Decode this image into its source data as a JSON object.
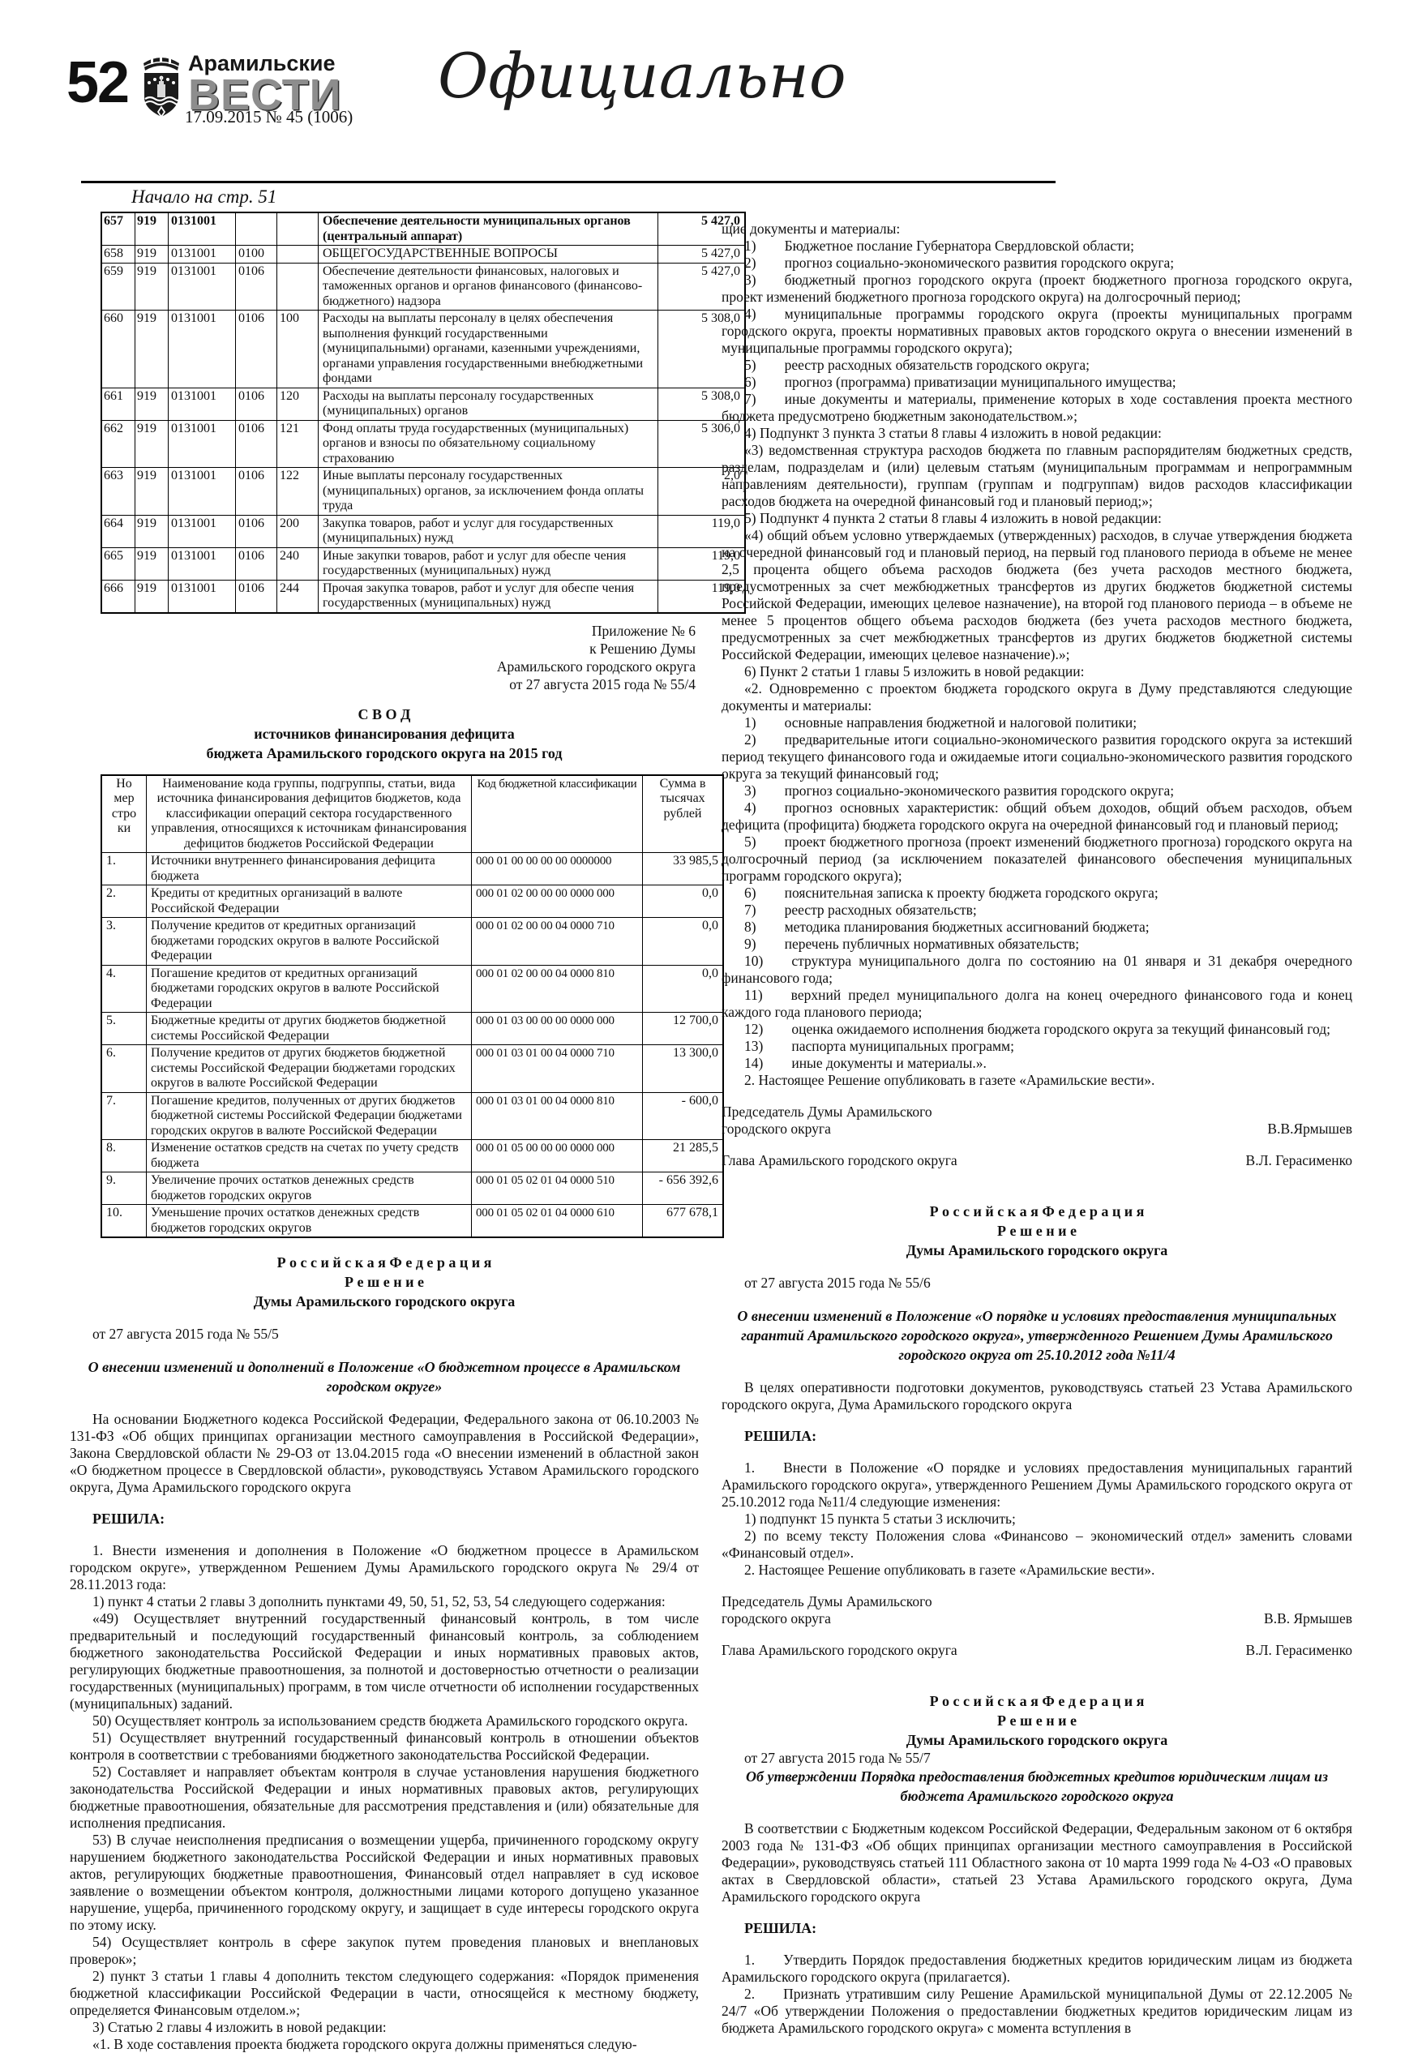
{
  "header": {
    "page_number": "52",
    "brand_top": "Арамильские",
    "brand_main": "ВЕСТИ",
    "issue_line": "17.09.2015  № 45 (1006)",
    "section_label": "Официально",
    "continued_note": "Начало на стр. 51",
    "emblem": "aramil-coat-of-arms"
  },
  "table1": {
    "rows": [
      {
        "bold": true,
        "cells": [
          "657",
          "919",
          "0131001",
          "",
          "",
          "Обеспечение деятельности муниципальных органов (центральный аппарат)",
          "5 427,0"
        ]
      },
      {
        "cells": [
          "658",
          "919",
          "0131001",
          "0100",
          "",
          "ОБЩЕГОСУДАРСТВЕННЫЕ ВОПРОСЫ",
          "5 427,0"
        ]
      },
      {
        "cells": [
          "659",
          "919",
          "0131001",
          "0106",
          "",
          "Обеспечение деятельности финансовых, налоговых и таможенных органов и органов финансового (финансово-бюджетного) надзора",
          "5 427,0"
        ]
      },
      {
        "cells": [
          "660",
          "919",
          "0131001",
          "0106",
          "100",
          "Расходы на выплаты персоналу в целях обеспечения выполнения функций государственными (муниципальными) органами, казенными учреждениями, органами управления государственными внебюджетными фондами",
          "5 308,0"
        ]
      },
      {
        "cells": [
          "661",
          "919",
          "0131001",
          "0106",
          "120",
          "Расходы на выплаты персоналу государственных (муниципальных) органов",
          "5 308,0"
        ]
      },
      {
        "cells": [
          "662",
          "919",
          "0131001",
          "0106",
          "121",
          "Фонд оплаты труда государственных (муниципальных) органов и  взносы по обязательному социальному страхованию",
          "5 306,0"
        ]
      },
      {
        "cells": [
          "663",
          "919",
          "0131001",
          "0106",
          "122",
          "Иные выплаты персоналу  государственных (муниципальных) органов, за исключением фонда оплаты труда",
          "2,0"
        ]
      },
      {
        "cells": [
          "664",
          "919",
          "0131001",
          "0106",
          "200",
          "Закупка товаров, работ и услуг для государственных (муниципальных) нужд",
          "119,0"
        ]
      },
      {
        "cells": [
          "665",
          "919",
          "0131001",
          "0106",
          "240",
          "Иные закупки товаров, работ и услуг для обеспе чения государственных (муниципальных) нужд",
          "119,0"
        ]
      },
      {
        "cells": [
          "666",
          "919",
          "0131001",
          "0106",
          "244",
          "Прочая закупка товаров, работ и услуг для обеспе чения государственных  (муниципальных) нужд",
          "119,0"
        ]
      }
    ]
  },
  "appendix": {
    "lines": [
      "Приложение № 6",
      "к Решению Думы",
      "Арамильского городского округа",
      "от 27 августа 2015 года № 55/4"
    ]
  },
  "svod": {
    "title_lines": [
      "С В О Д",
      "источников финансирования дефицита",
      "бюджета Арамильского городского округа на 2015 год"
    ],
    "header": [
      "Но мер стро ки",
      "Наименование кода группы,  подгруппы, статьи, вида источника  финансирования дефицитов бюджетов, кода классификации операций сектора государственного управления, относящихся к источникам  финансирования дефицитов бюджетов Российской Федерации",
      "Код бюджетной классификации",
      "Сумма в тысячах рублей"
    ],
    "rows": [
      {
        "cells": [
          "1.",
          "Источники внутреннего   финансирования дефицита бюджета",
          "000 01 00 00 00 00 0000000",
          "33 985,5"
        ]
      },
      {
        "cells": [
          "2.",
          "Кредиты от кредитных организаций в валюте Российской  Федерации",
          "000 01 02 00 00 00 0000 000",
          "0,0"
        ]
      },
      {
        "cells": [
          "3.",
          "Получение кредитов от кредитных организаций бюджетами  городских округов в валюте Российской  Федерации",
          "000 01 02 00 00 04 0000 710",
          "0,0"
        ]
      },
      {
        "cells": [
          "4.",
          "Погашение кредитов от кредитных организаций бюджетами  городских округов в валюте Российской  Федерации",
          "000 01 02 00 00 04 0000 810",
          "0,0"
        ]
      },
      {
        "cells": [
          "5.",
          "Бюджетные кредиты от других бюджетов бюджетной системы  Российской Федерации",
          "000 01 03 00 00 00 0000 000",
          "12 700,0"
        ]
      },
      {
        "cells": [
          "6.",
          "Получение кредитов от других бюджетов бюджетной системы  Российской Федерации  бюджетами  городских округов в валюте Российской  Федерации",
          "000 01 03 01 00 04 0000 710",
          "13 300,0"
        ]
      },
      {
        "cells": [
          "7.",
          "Погашение кредитов,  полученных от других бюджетов бюджетной системы  Российской Федерации бюджетами городских округов в валюте  Российской Федерации",
          "000 01 03 01 00 04 0000 810",
          "-  600,0"
        ]
      },
      {
        "cells": [
          "8.",
          "Изменение остатков средств  на счетах по учету средств бюджета",
          "000 01 05 00 00 00 0000 000",
          "21 285,5"
        ]
      },
      {
        "cells": [
          "9.",
          "Увеличение прочих остатков  денежных средств бюджетов городских округов",
          "000 01 05 02 01 04 0000 510",
          "- 656 392,6"
        ]
      },
      {
        "cells": [
          "10.",
          "Уменьшение прочих остатков  денежных средств бюджетов городских округов",
          "000 01 05 02 01 04 0000 610",
          "677 678,1"
        ]
      }
    ]
  },
  "left_doc": {
    "flow": [
      {
        "s": "gap"
      },
      {
        "t": "Р о с с и й с к а я   Ф е д е р а ц и я",
        "s": "hb"
      },
      {
        "t": "Р е ш е н и е",
        "s": "hb"
      },
      {
        "t": "Думы Арамильского городского округа",
        "s": "hb"
      },
      {
        "s": "gap"
      },
      {
        "t": "от 27 августа 2015 года № 55/5",
        "s": "plain"
      },
      {
        "s": "gap"
      },
      {
        "t": "О внесении изменений и дополнений в Положение «О бюджетном процессе в Арамильском городском округе»",
        "s": "cbi"
      },
      {
        "s": "gap"
      },
      {
        "t": "На основании Бюджетного кодекса Российской Федерации,        Федерального закона от 06.10.2003 № 131-ФЗ «Об общих принципах организации местного самоуправления в Российской Федерации», Закона Свердловской области № 29-ОЗ от 13.04.2015 года «О внесении изменений в областной закон «О бюджетном процессе в Свердловской области»,  руководствуясь Уставом Арамильского городского округа, Дума Арамильского городского округа",
        "s": "ind"
      },
      {
        "s": "gap"
      },
      {
        "t": "РЕШИЛА:",
        "s": "bold"
      },
      {
        "s": "gap"
      },
      {
        "t": "1. Внести изменения и дополнения в Положение «О бюджетном процессе в Арамильском городском округе», утвержденном Решением Думы Арамильского городского округа № 29/4 от 28.11.2013 года:",
        "s": "ind"
      },
      {
        "t": "1) пункт 4 статьи 2 главы 3 дополнить пунктами 49, 50, 51, 52, 53, 54 следующего содержания:",
        "s": "ind"
      },
      {
        "t": "«49) Осуществляет внутренний государственный финансовый контроль, в том числе предварительный и последующий государственный финансовый контроль, за соблюдением бюджетного законодательства Российской Федерации и иных нормативных правовых актов, регулирующих бюджетные правоотношения, за полнотой и достоверностью отчетности о реализации государственных (муниципальных) программ, в том числе отчетности об исполнении государственных (муниципальных) заданий.",
        "s": "ind"
      },
      {
        "t": "50) Осуществляет контроль за использованием средств бюджета Арамильского городского округа.",
        "s": "ind"
      },
      {
        "t": "51) Осуществляет внутренний государственный финансовый контроль в отношении объектов контроля в соответствии с требованиями бюджетного законодательства Российской Федерации.",
        "s": "ind"
      },
      {
        "t": "52) Составляет и направляет объектам контроля в случае установления нарушения бюджетного законодательства Российской Федерации и иных нормативных правовых актов, регулирующих бюджетные правоотношения, обязательные для рассмотрения представления и (или) обязательные для исполнения предписания.",
        "s": "ind"
      },
      {
        "t": "53) В случае неисполнения предписания о возмещении ущерба, причиненного городскому округу нарушением бюджетного законодательства Российской Федерации и иных нормативных правовых актов, регулирующих бюджетные правоотношения, Финансовый отдел направляет в суд исковое заявление о возмещении объектом контроля, должностными лицами которого допущено указанное нарушение, ущерба, причиненного городскому округу, и защищает в суде интересы городского округа по этому иску.",
        "s": "ind"
      },
      {
        "t": "54) Осуществляет контроль в сфере закупок путем проведения плановых и внеплановых проверок»;",
        "s": "ind"
      },
      {
        "t": "2) пункт 3 статьи 1 главы 4 дополнить текстом следующего содержания: «Порядок применения бюджетной классификации Российской Федерации в части, относящейся к местному бюджету, определяется Финансовым отделом.»;",
        "s": "ind"
      },
      {
        "t": "3) Статью 2 главы 4 изложить в новой редакции:",
        "s": "ind"
      },
      {
        "t": "«1. В ходе составления проекта бюджета городского округа должны применяться следую-",
        "s": "ind"
      }
    ]
  },
  "right_col": {
    "flow": [
      {
        "t": "щие документы и материалы:",
        "s": "noind"
      },
      {
        "t": "1)  Бюджетное послание Губернатора Свердловской области;",
        "s": "ind"
      },
      {
        "t": "2)  прогноз социально-экономического развития городского округа;",
        "s": "ind"
      },
      {
        "t": "3)  бюджетный прогноз городского округа (проект бюджетного прогноза городского округа, проект изменений бюджетного прогноза городского округа) на долгосрочный период;",
        "s": "ind"
      },
      {
        "t": "4)  муниципальные программы городского округа (проекты муниципальных программ городского округа, проекты нормативных правовых актов городского округа о внесении изменений в муниципальные программы городского округа);",
        "s": "ind"
      },
      {
        "t": "5)  реестр расходных обязательств городского округа;",
        "s": "ind"
      },
      {
        "t": "6)  прогноз (программа) приватизации муниципального имущества;",
        "s": "ind"
      },
      {
        "t": "7)  иные документы и материалы, применение которых в ходе составления проекта местного бюджета предусмотрено бюджетным законодательством.»;",
        "s": "ind"
      },
      {
        "t": "4) Подпункт 3 пункта 3 статьи 8 главы 4 изложить в новой редакции:",
        "s": "ind"
      },
      {
        "t": "«3) ведомственная структура расходов бюджета по главным распорядителям бюджетных средств, разделам, подразделам и (или) целевым статьям (муниципальным программам и непрограммным направлениям деятельности), группам (группам и подгруппам) видов расходов классификации расходов бюджета на очередной финансовый год и плановый период;»;",
        "s": "ind"
      },
      {
        "t": "5) Подпункт 4 пункта 2 статьи 8 главы 4 изложить в новой редакции:",
        "s": "ind"
      },
      {
        "t": "«4) общий объем условно утверждаемых (утвержденных) расходов, в случае утверждения бюджета на очередной финансовый год и плановый период, на первый год планового периода в объеме не менее 2,5 процента общего объема расходов бюджета (без учета расходов местного бюджета, предусмотренных за счет межбюджетных трансфертов из других бюджетов бюджетной системы Российской Федерации, имеющих целевое назначение), на второй год планового периода – в объеме не менее 5 процентов общего объема расходов бюджета (без учета расходов местного бюджета, предусмотренных за счет межбюджетных трансфертов из других бюджетов бюджетной системы Российской Федерации, имеющих целевое назначение).»;",
        "s": "ind"
      },
      {
        "t": "6) Пункт 2 статьи 1 главы 5 изложить в новой редакции:",
        "s": "ind"
      },
      {
        "t": "«2. Одновременно с проектом бюджета городского округа в Думу представляются следующие документы и материалы:",
        "s": "ind"
      },
      {
        "t": "1)  основные направления бюджетной и налоговой политики;",
        "s": "ind"
      },
      {
        "t": "2)  предварительные итоги социально-экономического развития городского округа за истекший период текущего финансового года и ожидаемые итоги социально-экономического развития городского округа за текущий финансовый год;",
        "s": "ind"
      },
      {
        "t": "3)  прогноз социально-экономического развития городского округа;",
        "s": "ind"
      },
      {
        "t": "4)  прогноз основных характеристик: общий объем доходов, общий объем расходов, объем дефицита (профицита) бюджета городского округа на очередной финансовый год и плановый период;",
        "s": "ind"
      },
      {
        "t": "5)  проект бюджетного прогноза (проект изменений бюджетного прогноза) городского округа на долгосрочный период (за исключением показателей финансового обеспечения муниципальных программ городского округа);",
        "s": "ind"
      },
      {
        "t": "6)  пояснительная записка к проекту бюджета городского округа;",
        "s": "ind"
      },
      {
        "t": "7)  реестр расходных обязательств;",
        "s": "ind"
      },
      {
        "t": "8)  методика планирования бюджетных ассигнований бюджета;",
        "s": "ind"
      },
      {
        "t": "9)  перечень публичных нормативных обязательств;",
        "s": "ind"
      },
      {
        "t": "10)  структура муниципального долга по состоянию на 01 января и 31 декабря очередного финансового года;",
        "s": "ind"
      },
      {
        "t": "11)  верхний предел муниципального долга на конец очередного финансового года и конец каждого года планового периода;",
        "s": "ind"
      },
      {
        "t": "12)  оценка ожидаемого исполнения бюджета городского округа за текущий финансовый год;",
        "s": "ind"
      },
      {
        "t": "13)  паспорта муниципальных программ;",
        "s": "ind"
      },
      {
        "t": "14)  иные документы и материалы.».",
        "s": "ind"
      },
      {
        "t": "2. Настоящее Решение опубликовать в газете «Арамильские вести».",
        "s": "ind"
      },
      {
        "s": "gap"
      },
      {
        "t": "Председатель Думы Арамильского",
        "s": "noind"
      },
      {
        "l": "городского округа",
        "r": "В.В.Ярмышев"
      },
      {
        "s": "gap"
      },
      {
        "l": "Глава Арамильского городского округа",
        "r": "В.Л. Герасименко"
      },
      {
        "s": "gap2"
      },
      {
        "t": "Р о с с и й с к а я   Ф е д е р а ц и я",
        "s": "hb"
      },
      {
        "t": "Р е ш е н и е",
        "s": "hb"
      },
      {
        "t": "Думы Арамильского городского округа",
        "s": "hb"
      },
      {
        "s": "gap"
      },
      {
        "t": "от 27 августа 2015 года № 55/6",
        "s": "plain"
      },
      {
        "s": "gap"
      },
      {
        "t": "О внесении изменений в  Положение «О порядке и условиях предоставления муниципальных гарантий Арамильского городского округа», утвержденного Решением Думы Арамильского городского округа от 25.10.2012 года №11/4",
        "s": "cbi"
      },
      {
        "s": "gap"
      },
      {
        "t": "В целях оперативности подготовки документов, руководствуясь статьей 23 Устава Арамильского городского округа, Дума Арамильского городского округа",
        "s": "ind"
      },
      {
        "s": "gap"
      },
      {
        "t": "РЕШИЛА:",
        "s": "bold"
      },
      {
        "s": "gap"
      },
      {
        "t": "1.  Внести в Положение «О порядке и условиях предоставления муниципальных гарантий Арамильского городского округа», утвержденного Решением Думы Арамильского городского округа от 25.10.2012 года №11/4 следующие изменения:",
        "s": "ind"
      },
      {
        "t": "1) подпункт 15 пункта 5 статьи 3 исключить;",
        "s": "ind"
      },
      {
        "t": "2) по всему тексту Положения слова «Финансово – экономический отдел» заменить словами «Финансовый отдел».",
        "s": "ind"
      },
      {
        "t": "2. Настоящее Решение опубликовать в газете «Арамильские вести».",
        "s": "ind"
      },
      {
        "s": "gap"
      },
      {
        "t": "Председатель Думы Арамильского",
        "s": "noind"
      },
      {
        "l": "городского округа",
        "r": "В.В. Ярмышев"
      },
      {
        "s": "gap"
      },
      {
        "l": "Глава Арамильского городского округа",
        "r": "В.Л. Герасименко"
      },
      {
        "s": "gap2"
      },
      {
        "t": "Р о с с и й с к а я   Ф е д е р а ц и я",
        "s": "hb"
      },
      {
        "t": "Р е ш е н и е",
        "s": "hb"
      },
      {
        "t": "Думы Арамильского городского округа",
        "s": "hb"
      },
      {
        "t": "от 27 августа 2015 года № 55/7",
        "s": "plain"
      },
      {
        "t": "Об утверждении Порядка предоставления бюджетных кредитов юридическим лицам из бюджета Арамильского городского округа",
        "s": "cbi"
      },
      {
        "s": "gap"
      },
      {
        "t": "В соответствии с Бюджетным кодексом Российской Федерации, Федеральным законом от 6 октября 2003 года № 131-ФЗ «Об общих принципах организации местного самоуправления в Российской Федерации», руководствуясь статьей 111 Областного закона от 10 марта 1999 года № 4-ОЗ «О правовых актах в Свердловской области», статьей 23 Устава Арамильского городского округа, Дума Арамильского городского округа",
        "s": "ind"
      },
      {
        "s": "gap"
      },
      {
        "t": "РЕШИЛА:",
        "s": "bold"
      },
      {
        "s": "gap"
      },
      {
        "t": "1.  Утвердить Порядок предоставления бюджетных кредитов юридическим лицам из бюджета Арамильского городского округа (прилагается).",
        "s": "ind"
      },
      {
        "t": "2.  Признать утратившим силу Решение Арамильской муниципальной Думы от 22.12.2005 № 24/7 «Об утверждении Положения о предоставлении бюджетных кредитов юридическим лицам из бюджета Арамильского городского округа» с момента вступления в",
        "s": "ind"
      }
    ]
  }
}
